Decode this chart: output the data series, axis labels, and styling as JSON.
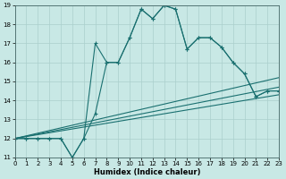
{
  "xlabel": "Humidex (Indice chaleur)",
  "xlim": [
    0,
    23
  ],
  "ylim": [
    11,
    19
  ],
  "xticks": [
    0,
    1,
    2,
    3,
    4,
    5,
    6,
    7,
    8,
    9,
    10,
    11,
    12,
    13,
    14,
    15,
    16,
    17,
    18,
    19,
    20,
    21,
    22,
    23
  ],
  "yticks": [
    11,
    12,
    13,
    14,
    15,
    16,
    17,
    18,
    19
  ],
  "background_color": "#c8e8e5",
  "grid_color": "#aacfcc",
  "line_color": "#1a7070",
  "line1_x": [
    0,
    1,
    2,
    3,
    4,
    5,
    6,
    7,
    8,
    9,
    10,
    11,
    12,
    13,
    14,
    15,
    16,
    17,
    18,
    19,
    20,
    21,
    22,
    23
  ],
  "line1_y": [
    12,
    12,
    12,
    12,
    12,
    11,
    12,
    17,
    16,
    16,
    17.3,
    18.8,
    18.3,
    19,
    18.8,
    16.7,
    17.3,
    17.3,
    16.8,
    16,
    15.4,
    14.2,
    14.5,
    14.5
  ],
  "line2_x": [
    0,
    1,
    2,
    3,
    4,
    5,
    6,
    7,
    8,
    9,
    10,
    11,
    12,
    13,
    14,
    15,
    16,
    17,
    18,
    19,
    20,
    21,
    22,
    23
  ],
  "line2_y": [
    12,
    12,
    12,
    12,
    12,
    11,
    12,
    13.3,
    16,
    16,
    17.3,
    18.8,
    18.3,
    19,
    18.8,
    16.7,
    17.3,
    17.3,
    16.8,
    16,
    15.4,
    14.2,
    14.5,
    14.5
  ],
  "line3_x": [
    0,
    23
  ],
  "line3_y": [
    12,
    14.3
  ],
  "line4_x": [
    0,
    23
  ],
  "line4_y": [
    12,
    14.7
  ],
  "line5_x": [
    0,
    23
  ],
  "line5_y": [
    12,
    15.2
  ]
}
